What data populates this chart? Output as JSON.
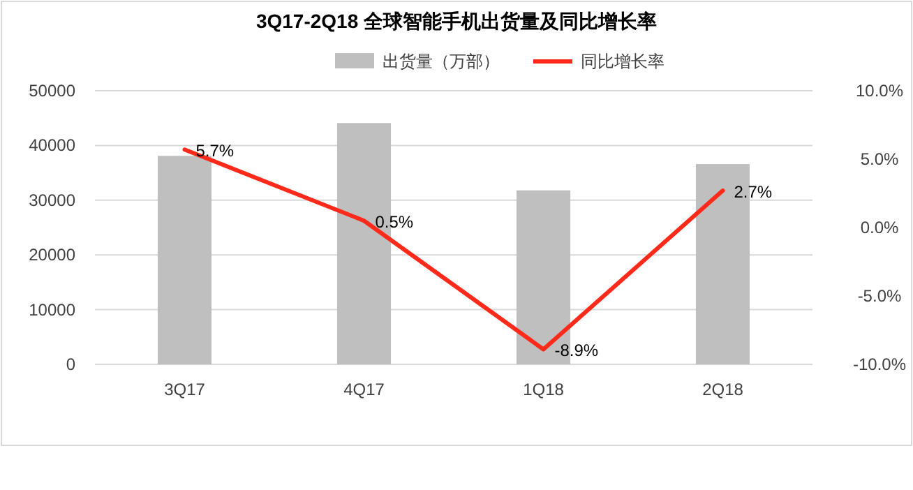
{
  "chart_data": {
    "type": "bar",
    "title": "3Q17-2Q18  全球智能手机出货量及同比增长率",
    "categories": [
      "3Q17",
      "4Q17",
      "1Q18",
      "2Q18"
    ],
    "series": [
      {
        "name": "出货量（万部）",
        "color": "#bfbfbf",
        "values": [
          38100,
          44100,
          31800,
          36600
        ]
      },
      {
        "name": "同比增长率",
        "type": "line",
        "axis": "y2",
        "color": "#ff2a1a",
        "values": [
          5.7,
          0.5,
          -8.9,
          2.7
        ],
        "value_labels": [
          "5.7%",
          "0.5%",
          "-8.9%",
          "2.7%"
        ]
      }
    ],
    "ylim": [
      0,
      50000
    ],
    "yticks": [
      0,
      10000,
      20000,
      30000,
      40000,
      50000
    ],
    "y2lim": [
      -10,
      10
    ],
    "y2ticks": [
      {
        "value": -10,
        "label": "-10.0%"
      },
      {
        "value": -5,
        "label": "-5.0%"
      },
      {
        "value": 0,
        "label": "0.0%"
      },
      {
        "value": 5,
        "label": "5.0%"
      },
      {
        "value": 10,
        "label": "10.0%"
      }
    ],
    "grid": "y",
    "legend": "top",
    "marker": "none",
    "line_style": "solid"
  }
}
